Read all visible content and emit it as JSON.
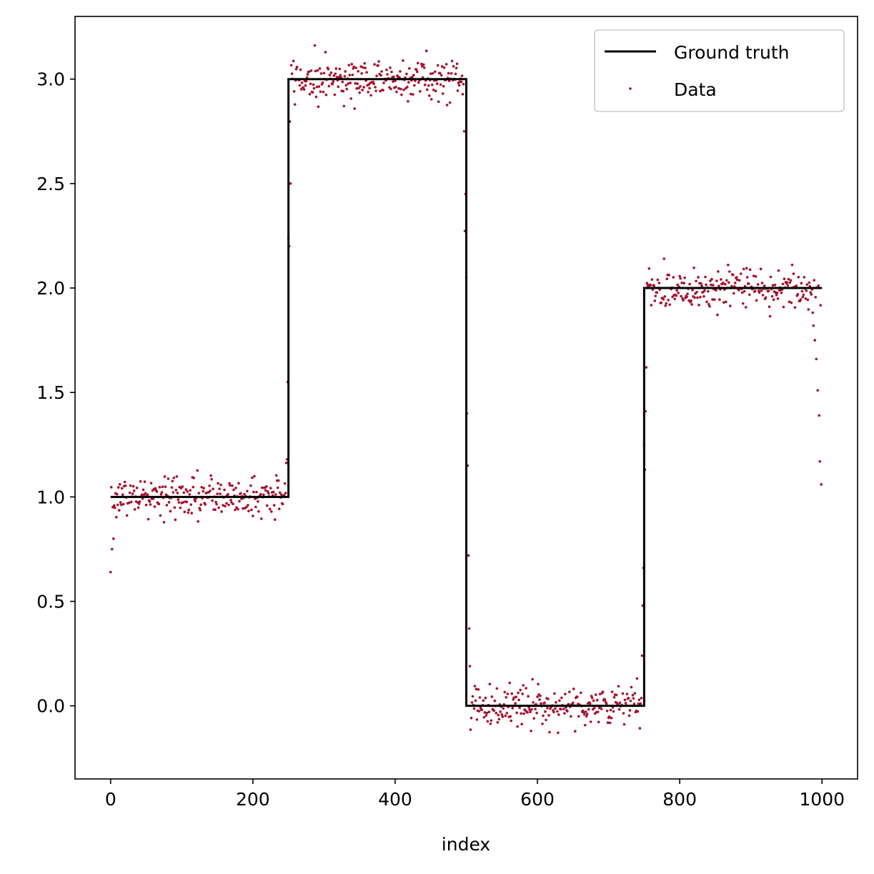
{
  "chart_data": {
    "type": "scatter",
    "title": "",
    "xlabel": "index",
    "ylabel": "",
    "xlim": [
      -50,
      1050
    ],
    "ylim": [
      -0.35,
      3.3
    ],
    "xticks": [
      0,
      200,
      400,
      600,
      800,
      1000
    ],
    "yticks": [
      0.0,
      0.5,
      1.0,
      1.5,
      2.0,
      2.5,
      3.0
    ],
    "xtick_labels": [
      "0",
      "200",
      "400",
      "600",
      "800",
      "1000"
    ],
    "ytick_labels": [
      "0.0",
      "0.5",
      "1.0",
      "1.5",
      "2.0",
      "2.5",
      "3.0"
    ],
    "grid": false,
    "legend_position": "top-right",
    "series": [
      {
        "name": "Ground truth",
        "type": "line",
        "color": "#000000",
        "x": [
          0,
          250,
          250,
          500,
          500,
          750,
          750,
          1000
        ],
        "y": [
          1.0,
          1.0,
          3.0,
          3.0,
          0.0,
          0.0,
          2.0,
          2.0
        ]
      },
      {
        "name": "Data",
        "type": "scatter",
        "color": "#a50f2d",
        "n_points": 1000,
        "segments": [
          {
            "x_start": 0,
            "x_end": 250,
            "level": 1.0
          },
          {
            "x_start": 250,
            "x_end": 500,
            "level": 3.0
          },
          {
            "x_start": 500,
            "x_end": 750,
            "level": 0.0
          },
          {
            "x_start": 750,
            "x_end": 1000,
            "level": 2.0
          }
        ],
        "noise_sd": 0.05,
        "edge_blur": 4,
        "sample_points": [
          {
            "x": 0,
            "y": 0.64
          },
          {
            "x": 2,
            "y": 0.75
          },
          {
            "x": 4,
            "y": 0.8
          },
          {
            "x": 248,
            "y": 1.18
          },
          {
            "x": 249,
            "y": 1.55
          },
          {
            "x": 251,
            "y": 2.2
          },
          {
            "x": 253,
            "y": 2.5
          },
          {
            "x": 497,
            "y": 2.75
          },
          {
            "x": 499,
            "y": 2.45
          },
          {
            "x": 500,
            "y": 2.05
          },
          {
            "x": 501,
            "y": 1.4
          },
          {
            "x": 502,
            "y": 1.15
          },
          {
            "x": 503,
            "y": 0.72
          },
          {
            "x": 504,
            "y": 0.37
          },
          {
            "x": 505,
            "y": 0.19
          },
          {
            "x": 747,
            "y": 0.24
          },
          {
            "x": 748,
            "y": 0.48
          },
          {
            "x": 749,
            "y": 0.66
          },
          {
            "x": 751,
            "y": 1.13
          },
          {
            "x": 752,
            "y": 1.41
          },
          {
            "x": 753,
            "y": 1.62
          },
          {
            "x": 988,
            "y": 1.82
          },
          {
            "x": 990,
            "y": 1.75
          },
          {
            "x": 992,
            "y": 1.66
          },
          {
            "x": 994,
            "y": 1.51
          },
          {
            "x": 996,
            "y": 1.39
          },
          {
            "x": 997,
            "y": 1.17
          },
          {
            "x": 999,
            "y": 1.06
          }
        ]
      }
    ]
  },
  "legend": {
    "items": [
      {
        "label": "Ground truth",
        "kind": "line",
        "color": "#000000"
      },
      {
        "label": "Data",
        "kind": "marker",
        "color": "#a50f2d"
      }
    ]
  }
}
